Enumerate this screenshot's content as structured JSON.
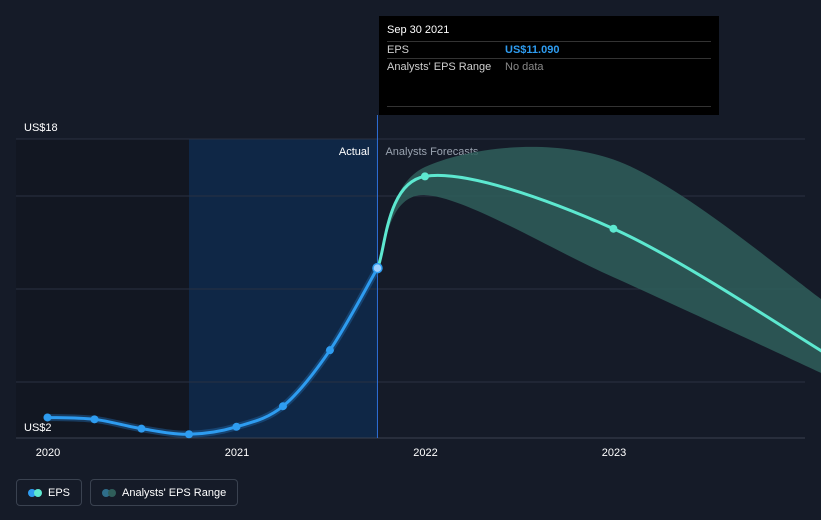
{
  "tooltip": {
    "date": "Sep 30 2021",
    "rows": [
      {
        "label": "EPS",
        "value": "US$11.090"
      },
      {
        "label": "Analysts' EPS Range",
        "value": "No data"
      }
    ]
  },
  "sections": {
    "actual": "Actual",
    "forecast": "Analysts Forecasts"
  },
  "legend": {
    "eps": "EPS",
    "range": "Analysts' EPS Range"
  },
  "colors": {
    "background": "#151b28",
    "actual_line": "#2e9cf0",
    "forecast_line": "#5de8d0",
    "range_fill": "#2f5e5a",
    "actual_highlight": "#0f2746"
  },
  "chart_data": {
    "type": "line",
    "ylim": [
      2,
      18
    ],
    "y_tick_labels": [
      "US$2",
      "US$18"
    ],
    "x_tick_labels": [
      "2020",
      "2021",
      "2022",
      "2023"
    ],
    "x_ticks": [
      "2020-01-01",
      "2021-01-01",
      "2022-01-01",
      "2023-01-01"
    ],
    "x_range": [
      "2020-01-01",
      "2024-02-28"
    ],
    "divider_date": "2021-09-30",
    "highlight_start": "2020-09-30",
    "series": [
      {
        "name": "EPS",
        "points": [
          {
            "date": "2019-12-31",
            "value": 3.1
          },
          {
            "date": "2020-03-31",
            "value": 3.0
          },
          {
            "date": "2020-06-30",
            "value": 2.5
          },
          {
            "date": "2020-09-30",
            "value": 2.2
          },
          {
            "date": "2020-12-31",
            "value": 2.6
          },
          {
            "date": "2021-03-31",
            "value": 3.7
          },
          {
            "date": "2021-06-30",
            "value": 6.7
          },
          {
            "date": "2021-09-30",
            "value": 11.09
          }
        ]
      },
      {
        "name": "EPS Forecast",
        "points": [
          {
            "date": "2021-09-30",
            "value": 11.09
          },
          {
            "date": "2021-12-31",
            "value": 16.0
          },
          {
            "date": "2022-12-31",
            "value": 13.2
          },
          {
            "date": "2024-02-28",
            "value": 6.3
          }
        ]
      },
      {
        "name": "Analysts' EPS Range",
        "high": [
          {
            "date": "2021-09-30",
            "value": 11.09
          },
          {
            "date": "2021-12-31",
            "value": 16.5
          },
          {
            "date": "2022-12-31",
            "value": 16.9
          },
          {
            "date": "2024-02-28",
            "value": 9.0
          }
        ],
        "low": [
          {
            "date": "2021-09-30",
            "value": 11.09
          },
          {
            "date": "2021-12-31",
            "value": 15.0
          },
          {
            "date": "2022-12-31",
            "value": 10.6
          },
          {
            "date": "2024-02-28",
            "value": 5.2
          }
        ]
      }
    ]
  }
}
